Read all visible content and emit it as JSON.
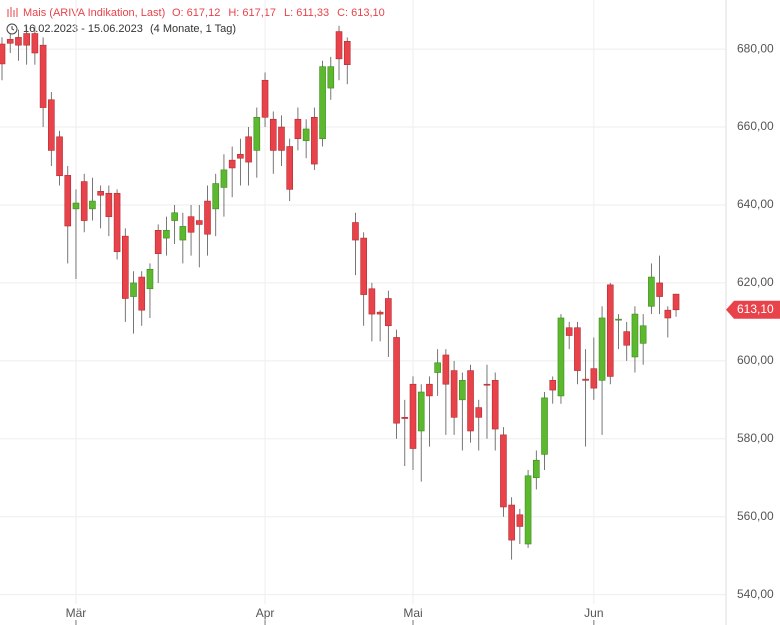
{
  "chart_data": {
    "type": "candlestick",
    "header": {
      "title": "Mais (ARIVA Indikation, Last)",
      "ohlc": [
        "O: 617,12",
        "H: 617,17",
        "L: 611,33",
        "C: 613,10"
      ],
      "range": "16.02.2023 - 15.06.2023",
      "duration": "(4 Monate, 1 Tag)"
    },
    "categories": [
      null,
      null,
      null,
      null,
      null,
      null,
      null,
      null,
      null,
      "Mär",
      null,
      null,
      null,
      null,
      null,
      null,
      null,
      null,
      null,
      null,
      null,
      null,
      null,
      null,
      null,
      null,
      null,
      null,
      null,
      null,
      null,
      null,
      "Apr",
      null,
      null,
      null,
      null,
      null,
      null,
      null,
      null,
      null,
      null,
      null,
      null,
      null,
      null,
      null,
      null,
      null,
      "Mai",
      null,
      null,
      null,
      null,
      null,
      null,
      null,
      null,
      null,
      null,
      null,
      null,
      null,
      null,
      null,
      null,
      null,
      null,
      null,
      null,
      null,
      "Jun",
      null,
      null,
      null,
      null,
      null,
      null,
      null,
      null,
      null,
      null
    ],
    "open": [
      681.3,
      682.5,
      683,
      684,
      684,
      681,
      667,
      657.5,
      647.6,
      639,
      646,
      639,
      643.5,
      643,
      643,
      632,
      616.5,
      621.5,
      618.5,
      633.5,
      631.5,
      636,
      631,
      637,
      636,
      641,
      639,
      644.5,
      651.5,
      653,
      657.5,
      654,
      672,
      662,
      660,
      655,
      662,
      656.5,
      662.5,
      657,
      670,
      684.5,
      682,
      635.5,
      631.5,
      618.5,
      612.5,
      616,
      606,
      585.5,
      594,
      582,
      594,
      597,
      601.5,
      597.5,
      590,
      597.5,
      588,
      594,
      595,
      581,
      563,
      560.5,
      553,
      570,
      576,
      595,
      591,
      608.5,
      608.5,
      595.3,
      598,
      595,
      619.5,
      610.5,
      607.5,
      601,
      604.5,
      614,
      620,
      613,
      617.12
    ],
    "high": [
      683,
      684,
      685,
      686,
      686,
      683,
      669,
      659,
      650,
      644,
      648,
      647,
      645,
      645,
      644,
      634,
      623,
      623,
      625,
      635,
      637,
      640,
      638,
      640,
      640,
      645,
      648,
      653,
      655,
      657,
      660,
      665,
      674,
      664,
      663,
      657,
      665,
      662,
      665,
      677,
      678,
      686,
      683,
      638,
      633,
      620,
      613,
      618,
      608,
      590,
      596,
      594,
      596,
      603,
      603,
      600,
      597,
      599,
      590,
      599,
      597,
      583,
      565,
      562,
      572,
      577,
      592,
      596,
      612,
      610,
      610,
      603,
      606,
      614,
      620,
      612,
      610,
      614,
      612,
      625,
      627,
      614,
      617.17
    ],
    "low": [
      672,
      679,
      677,
      676,
      676,
      660,
      650,
      645,
      625,
      621,
      633,
      636,
      634,
      632,
      626,
      610,
      607,
      609,
      611,
      620,
      627,
      630,
      625,
      627,
      624,
      627,
      632,
      637,
      642,
      645,
      645,
      647,
      660,
      648,
      650,
      641,
      654,
      652,
      649,
      655,
      667,
      672,
      671,
      622,
      609,
      605,
      605,
      601,
      580,
      573,
      572,
      569,
      578,
      591,
      581,
      581,
      577,
      579,
      577,
      580,
      577,
      560,
      549,
      553,
      552,
      567,
      572,
      589,
      589,
      603,
      594,
      578,
      590,
      581,
      594,
      603,
      600,
      597,
      599,
      612,
      612,
      606,
      611.33
    ],
    "close": [
      676.2,
      681.5,
      681,
      681,
      679,
      665,
      654,
      647.5,
      634.6,
      640.5,
      636,
      641,
      642.5,
      637,
      628,
      616,
      620,
      613,
      623.5,
      627.5,
      633.5,
      638,
      634.5,
      633,
      635,
      632.5,
      645.5,
      649,
      649.5,
      652,
      651,
      662.5,
      662.5,
      654,
      654,
      644,
      657,
      659.5,
      650.5,
      675.5,
      675.5,
      677.5,
      676,
      631,
      617,
      612,
      612,
      609,
      584,
      585.2,
      577.5,
      592,
      591,
      599.5,
      594,
      585.5,
      595,
      582,
      585.5,
      593.8,
      582.5,
      562.5,
      554,
      557.5,
      570.5,
      574.5,
      590.5,
      592.5,
      611,
      606.5,
      597.5,
      595,
      593,
      611,
      596,
      610.7,
      604,
      612,
      609,
      621.5,
      616.5,
      611,
      613.1
    ],
    "up_color": "#5cb82e",
    "down_color": "#e8434a",
    "last_price": {
      "value": 613.1,
      "label": "613,10"
    },
    "ylim": [
      537.6,
      692.6
    ],
    "yticks": [
      {
        "value": 540,
        "label": "540,00"
      },
      {
        "value": 560,
        "label": "560,00"
      },
      {
        "value": 580,
        "label": "580,00"
      },
      {
        "value": 600,
        "label": "600,00"
      },
      {
        "value": 620,
        "label": "620,00"
      },
      {
        "value": 640,
        "label": "640,00"
      },
      {
        "value": 660,
        "label": "660,00"
      },
      {
        "value": 680,
        "label": "680,00"
      }
    ],
    "grid": true
  }
}
